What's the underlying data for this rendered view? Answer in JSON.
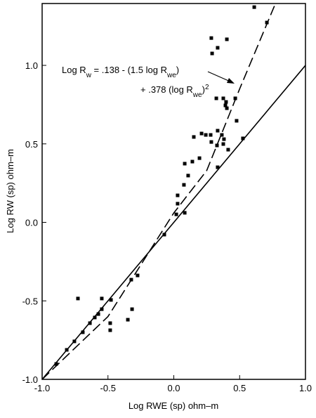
{
  "chart_data": {
    "type": "scatter",
    "x_label": "Log RWE (sp) ohm–m",
    "y_label": "Log RW (sp) ohm–m",
    "xlim": [
      -1,
      1
    ],
    "ylim": [
      -1,
      1.394
    ],
    "xticks": [
      {
        "value": -1,
        "label": "-1.0"
      },
      -0.5,
      {
        "value": 0,
        "label": "0.0"
      },
      0.5,
      {
        "value": 1,
        "label": "1.0"
      }
    ],
    "yticks": [
      {
        "value": -1,
        "label": "-1.0"
      },
      -0.5,
      {
        "value": 0,
        "label": "0.0"
      },
      0.5,
      {
        "value": 1,
        "label": "1.0"
      }
    ],
    "annotation": {
      "line1": [
        "Log R",
        "w",
        " = .138 - (1.5 log R",
        "we",
        ")"
      ],
      "line2": [
        "+ .378 (log R",
        "we",
        ")",
        "2"
      ]
    },
    "points": {
      "color": "#000",
      "x": [
        0.611,
        0.707,
        0.285,
        0.403,
        0.333,
        0.291,
        0.467,
        0.323,
        0.376,
        0.397,
        0.392,
        0.403,
        0.477,
        0.525,
        0.152,
        0.211,
        0.243,
        0.28,
        0.333,
        0.365,
        0.381,
        0.285,
        0.328,
        0.376,
        0.413,
        0.195,
        0.141,
        0.083,
        0.333,
        0.109,
        0.077,
        0.029,
        0.029,
        0.083,
        0.019,
        -0.072,
        -0.275,
        -0.323,
        -0.317,
        -0.349,
        -0.483,
        -0.483,
        -0.728,
        -0.547,
        -0.477,
        -0.547,
        -0.573,
        -0.6,
        -0.637,
        -0.691,
        -0.755,
        -0.813,
        -0.893
      ],
      "values": [
        1.371,
        1.273,
        1.174,
        1.166,
        1.112,
        1.076,
        0.79,
        0.79,
        0.79,
        0.767,
        0.745,
        0.727,
        0.647,
        0.535,
        0.544,
        0.566,
        0.557,
        0.557,
        0.584,
        0.557,
        0.53,
        0.512,
        0.49,
        0.499,
        0.463,
        0.409,
        0.387,
        0.374,
        0.351,
        0.298,
        0.239,
        0.172,
        0.119,
        0.061,
        0.051,
        -0.078,
        -0.338,
        -0.365,
        -0.553,
        -0.62,
        -0.642,
        -0.687,
        -0.485,
        -0.485,
        -0.494,
        -0.553,
        -0.584,
        -0.606,
        -0.642,
        -0.7,
        -0.758,
        -0.812,
        -0.902
      ]
    },
    "lines": [
      {
        "style": "solid",
        "color": "#000",
        "x": [
          -1,
          1
        ],
        "values": [
          -1,
          1
        ]
      },
      {
        "style": "dashed",
        "color": "#000",
        "x": [
          -1,
          -0.5,
          0,
          0.25,
          0.5,
          0.77
        ],
        "values": [
          -1,
          -0.6,
          0.06,
          0.33,
          0.85,
          1.39
        ]
      }
    ]
  }
}
